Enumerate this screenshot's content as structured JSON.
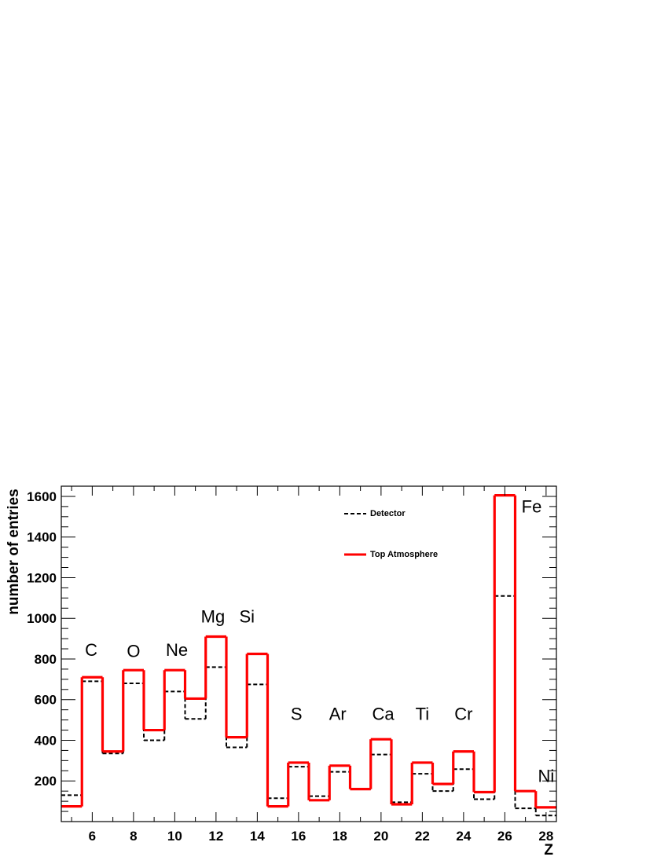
{
  "chart_data": {
    "type": "histogram",
    "xlabel": "Z",
    "ylabel": "number of entries",
    "xlim": [
      4.5,
      28.5
    ],
    "ylim": [
      0,
      1650
    ],
    "x_ticks": [
      6,
      8,
      10,
      12,
      14,
      16,
      18,
      20,
      22,
      24,
      26,
      28
    ],
    "y_ticks": [
      200,
      400,
      600,
      800,
      1000,
      1200,
      1400,
      1600
    ],
    "z_bins": [
      5,
      6,
      7,
      8,
      9,
      10,
      11,
      12,
      13,
      14,
      15,
      16,
      17,
      18,
      19,
      20,
      21,
      22,
      23,
      24,
      25,
      26,
      27,
      28
    ],
    "series": [
      {
        "name": "Detector",
        "color": "#000000",
        "style": "dashed",
        "values": [
          130,
          690,
          335,
          680,
          400,
          640,
          505,
          760,
          365,
          675,
          115,
          270,
          125,
          245,
          160,
          330,
          95,
          235,
          150,
          258,
          110,
          1110,
          65,
          30
        ]
      },
      {
        "name": "Top Atmosphere",
        "color": "#ff0000",
        "style": "solid",
        "values": [
          75,
          710,
          345,
          745,
          450,
          745,
          605,
          910,
          415,
          825,
          75,
          290,
          105,
          275,
          160,
          405,
          85,
          290,
          185,
          345,
          145,
          1605,
          150,
          70
        ]
      }
    ],
    "element_labels": [
      {
        "text": "C",
        "z": 5.95,
        "y": 815
      },
      {
        "text": "O",
        "z": 8.0,
        "y": 810
      },
      {
        "text": "Ne",
        "z": 10.1,
        "y": 815
      },
      {
        "text": "Mg",
        "z": 11.85,
        "y": 980
      },
      {
        "text": "Si",
        "z": 13.5,
        "y": 980
      },
      {
        "text": "S",
        "z": 15.9,
        "y": 500
      },
      {
        "text": "Ar",
        "z": 17.9,
        "y": 500
      },
      {
        "text": "Ca",
        "z": 20.1,
        "y": 500
      },
      {
        "text": "Ti",
        "z": 22.0,
        "y": 500
      },
      {
        "text": "Cr",
        "z": 24.0,
        "y": 500
      },
      {
        "text": "Fe",
        "z": 27.3,
        "y": 1520
      },
      {
        "text": "Ni",
        "z": 28.0,
        "y": 195
      }
    ],
    "legend": {
      "position": "top-right"
    }
  }
}
